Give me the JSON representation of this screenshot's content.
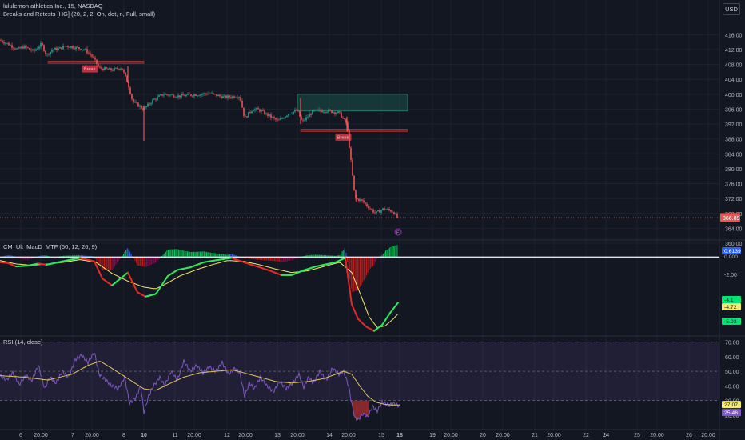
{
  "header": {
    "symbol_title": "lululemon athletica Inc., 15, NASDAQ",
    "indicator_title": "Breaks and Retests [HG] (20, 2, 2, On, dot, n, Full, small)",
    "currency_button": "USD"
  },
  "colors": {
    "background": "#131722",
    "up": "#26a69a",
    "down": "#ef5350",
    "grid": "#1e222d",
    "axis_text": "#b2b5be",
    "rsi_line": "#7e57c2",
    "rsi_ma": "#e3c45b",
    "macd_fast": "#e62828",
    "macd_fast_up": "#2ee85b",
    "macd_signal": "#f4ea6a",
    "retest_zone": "#1b5e55",
    "break_zone": "#8b2e38"
  },
  "chart_data": [
    {
      "type": "candlestick",
      "title": "lululemon athletica Inc., 15, NASDAQ",
      "ylim": [
        360,
        418
      ],
      "y_ticks": [
        "416.00",
        "412.00",
        "408.00",
        "404.00",
        "400.00",
        "396.00",
        "392.00",
        "388.00",
        "384.00",
        "380.00",
        "376.00",
        "372.00",
        "368.00",
        "364.00",
        "360.00"
      ],
      "last_price_label": "366.89",
      "anchors": [
        [
          0,
          414.5
        ],
        [
          10,
          413.5
        ],
        [
          22,
          412
        ],
        [
          30,
          412.8
        ],
        [
          42,
          411.5
        ],
        [
          52,
          413.5
        ],
        [
          58,
          410.5
        ],
        [
          66,
          412
        ],
        [
          74,
          412.2
        ],
        [
          82,
          413
        ],
        [
          95,
          412.5
        ],
        [
          106,
          412
        ],
        [
          116,
          410
        ],
        [
          124,
          407
        ],
        [
          140,
          406.5
        ],
        [
          152,
          407.2
        ],
        [
          160,
          403
        ],
        [
          166,
          398
        ],
        [
          180,
          396
        ],
        [
          192,
          398.5
        ],
        [
          204,
          400
        ],
        [
          224,
          399.5
        ],
        [
          238,
          399.8
        ],
        [
          262,
          400.2
        ],
        [
          280,
          399.2
        ],
        [
          300,
          399.5
        ],
        [
          306,
          393.5
        ],
        [
          316,
          396
        ],
        [
          324,
          395.8
        ],
        [
          334,
          394.5
        ],
        [
          348,
          392.8
        ],
        [
          362,
          395
        ],
        [
          372,
          395.6
        ],
        [
          378,
          392.5
        ],
        [
          392,
          395.5
        ],
        [
          408,
          395.6
        ],
        [
          424,
          395
        ],
        [
          434,
          392
        ],
        [
          438,
          384
        ],
        [
          444,
          372
        ],
        [
          452,
          371.5
        ],
        [
          462,
          369.5
        ],
        [
          470,
          368
        ],
        [
          480,
          369.3
        ],
        [
          492,
          368.5
        ],
        [
          498,
          366.5
        ]
      ],
      "spikes": [
        [
          160,
          407.5,
          403
        ],
        [
          180,
          397,
          387.5
        ],
        [
          376,
          399,
          392
        ],
        [
          434,
          394,
          390
        ],
        [
          446,
          373,
          371
        ]
      ],
      "breaks": [
        {
          "label": "Break",
          "x0": 60,
          "x1": 180,
          "y": 408.6,
          "label_x": 103,
          "label_y": 406.9
        },
        {
          "label": "Break",
          "x0": 376,
          "x1": 510,
          "y": 390.3,
          "label_x": 420,
          "label_y": 388.6
        }
      ],
      "retest_zone": {
        "x0": 372,
        "x1": 510,
        "y_top": 400,
        "y_bottom": 395.5
      }
    },
    {
      "type": "bar",
      "title": "CM_Ult_MacD_MTF (60, 12, 26, 9)",
      "ylim": [
        -9,
        1.8
      ],
      "y_ticks": [
        "-2.00"
      ],
      "labels": [
        "0.6139",
        "0.000",
        "-4.1",
        "-4.72",
        "-5.03"
      ],
      "macd_anchors": [
        [
          0,
          -0.6
        ],
        [
          10,
          -0.7
        ],
        [
          20,
          -1.1
        ],
        [
          35,
          -1.0
        ],
        [
          48,
          -0.75
        ],
        [
          58,
          -0.9
        ],
        [
          78,
          -0.5
        ],
        [
          100,
          -0.1
        ],
        [
          118,
          -0.5
        ],
        [
          128,
          -2.5
        ],
        [
          140,
          -3.3
        ],
        [
          160,
          -1.8
        ],
        [
          172,
          -4.1
        ],
        [
          182,
          -4.6
        ],
        [
          195,
          -4.3
        ],
        [
          210,
          -2.2
        ],
        [
          222,
          -1.5
        ],
        [
          238,
          -1.2
        ],
        [
          255,
          -0.6
        ],
        [
          275,
          -0.3
        ],
        [
          290,
          -0.1
        ],
        [
          308,
          -0.7
        ],
        [
          325,
          -1.2
        ],
        [
          338,
          -1.6
        ],
        [
          352,
          -2.1
        ],
        [
          365,
          -2.1
        ],
        [
          378,
          -1.6
        ],
        [
          395,
          -1.1
        ],
        [
          420,
          -0.6
        ],
        [
          432,
          -0.1
        ],
        [
          440,
          -5.5
        ],
        [
          448,
          -7.2
        ],
        [
          458,
          -8.1
        ],
        [
          468,
          -8.6
        ],
        [
          478,
          -7.9
        ],
        [
          488,
          -6.5
        ],
        [
          498,
          -5.3
        ]
      ],
      "signal_anchors": [
        [
          0,
          -0.4
        ],
        [
          20,
          -0.8
        ],
        [
          40,
          -0.95
        ],
        [
          60,
          -0.8
        ],
        [
          80,
          -0.6
        ],
        [
          100,
          -0.3
        ],
        [
          120,
          -0.6
        ],
        [
          140,
          -1.9
        ],
        [
          160,
          -2.8
        ],
        [
          180,
          -3.5
        ],
        [
          195,
          -3.7
        ],
        [
          210,
          -3.0
        ],
        [
          225,
          -2.2
        ],
        [
          245,
          -1.5
        ],
        [
          265,
          -0.9
        ],
        [
          285,
          -0.4
        ],
        [
          305,
          -0.5
        ],
        [
          325,
          -0.9
        ],
        [
          345,
          -1.4
        ],
        [
          365,
          -1.8
        ],
        [
          385,
          -1.6
        ],
        [
          405,
          -1.1
        ],
        [
          425,
          -0.6
        ],
        [
          440,
          -1.8
        ],
        [
          452,
          -4.6
        ],
        [
          462,
          -7.0
        ],
        [
          472,
          -8.2
        ],
        [
          482,
          -8.0
        ],
        [
          492,
          -7.2
        ],
        [
          498,
          -6.6
        ]
      ]
    },
    {
      "type": "line",
      "title": "RSI (14, close)",
      "ylim": [
        14,
        73
      ],
      "y_ticks": [
        "70.00",
        "60.00",
        "50.00",
        "40.00",
        "30.00",
        "20.00"
      ],
      "labels": [
        "27.07",
        "25.46"
      ],
      "rsi_anchors": [
        [
          0,
          47
        ],
        [
          8,
          44
        ],
        [
          16,
          49
        ],
        [
          24,
          41
        ],
        [
          32,
          47
        ],
        [
          40,
          44
        ],
        [
          48,
          54
        ],
        [
          56,
          38
        ],
        [
          62,
          46
        ],
        [
          70,
          42
        ],
        [
          78,
          50
        ],
        [
          86,
          46
        ],
        [
          94,
          58
        ],
        [
          102,
          61
        ],
        [
          110,
          56
        ],
        [
          118,
          63
        ],
        [
          124,
          48
        ],
        [
          130,
          45
        ],
        [
          140,
          40
        ],
        [
          148,
          38
        ],
        [
          156,
          46
        ],
        [
          162,
          28
        ],
        [
          170,
          32
        ],
        [
          176,
          40
        ],
        [
          180,
          22
        ],
        [
          186,
          33
        ],
        [
          192,
          40
        ],
        [
          200,
          46
        ],
        [
          206,
          40
        ],
        [
          214,
          50
        ],
        [
          222,
          44
        ],
        [
          230,
          57
        ],
        [
          238,
          50
        ],
        [
          246,
          54
        ],
        [
          254,
          49
        ],
        [
          262,
          53
        ],
        [
          270,
          50
        ],
        [
          278,
          56
        ],
        [
          286,
          48
        ],
        [
          294,
          52
        ],
        [
          300,
          49
        ],
        [
          306,
          33
        ],
        [
          312,
          42
        ],
        [
          318,
          38
        ],
        [
          326,
          46
        ],
        [
          334,
          40
        ],
        [
          342,
          36
        ],
        [
          350,
          43
        ],
        [
          358,
          38
        ],
        [
          366,
          42
        ],
        [
          374,
          48
        ],
        [
          380,
          39
        ],
        [
          386,
          46
        ],
        [
          392,
          42
        ],
        [
          400,
          50
        ],
        [
          408,
          44
        ],
        [
          416,
          52
        ],
        [
          424,
          48
        ],
        [
          430,
          50
        ],
        [
          436,
          40
        ],
        [
          440,
          28
        ],
        [
          444,
          18
        ],
        [
          448,
          17
        ],
        [
          454,
          21
        ],
        [
          460,
          19
        ],
        [
          466,
          26
        ],
        [
          472,
          23
        ],
        [
          478,
          29
        ],
        [
          486,
          27
        ],
        [
          494,
          28
        ],
        [
          500,
          26
        ]
      ],
      "ma_anchors": [
        [
          0,
          47
        ],
        [
          30,
          46
        ],
        [
          60,
          44
        ],
        [
          90,
          48
        ],
        [
          110,
          54
        ],
        [
          125,
          57
        ],
        [
          140,
          52
        ],
        [
          160,
          45
        ],
        [
          180,
          38
        ],
        [
          195,
          37
        ],
        [
          210,
          41
        ],
        [
          230,
          46
        ],
        [
          250,
          49
        ],
        [
          270,
          50
        ],
        [
          290,
          51
        ],
        [
          305,
          49
        ],
        [
          325,
          46
        ],
        [
          345,
          43
        ],
        [
          365,
          42
        ],
        [
          385,
          43
        ],
        [
          405,
          45
        ],
        [
          420,
          48
        ],
        [
          430,
          50
        ],
        [
          440,
          48
        ],
        [
          450,
          40
        ],
        [
          460,
          33
        ],
        [
          470,
          29
        ],
        [
          480,
          27.5
        ],
        [
          490,
          27
        ],
        [
          500,
          27
        ]
      ]
    }
  ],
  "time_axis": {
    "labels": [
      {
        "t": "6",
        "x": 26
      },
      {
        "t": "20:00",
        "x": 51
      },
      {
        "t": "7",
        "x": 91
      },
      {
        "t": "20:00",
        "x": 115
      },
      {
        "t": "8",
        "x": 155
      },
      {
        "t": "10",
        "x": 180
      },
      {
        "t": "11",
        "x": 219
      },
      {
        "t": "20:00",
        "x": 243
      },
      {
        "t": "12",
        "x": 284
      },
      {
        "t": "20:00",
        "x": 307
      },
      {
        "t": "13",
        "x": 347
      },
      {
        "t": "20:00",
        "x": 372
      },
      {
        "t": "14",
        "x": 412
      },
      {
        "t": "20:00",
        "x": 436
      },
      {
        "t": "15",
        "x": 477
      },
      {
        "t": "18",
        "x": 500
      },
      {
        "t": "19",
        "x": 541
      },
      {
        "t": "20:00",
        "x": 564
      },
      {
        "t": "20",
        "x": 604
      },
      {
        "t": "20:00",
        "x": 629
      },
      {
        "t": "21",
        "x": 669
      },
      {
        "t": "20:00",
        "x": 693
      },
      {
        "t": "22",
        "x": 733
      },
      {
        "t": "24",
        "x": 758
      },
      {
        "t": "25",
        "x": 797
      },
      {
        "t": "20:00",
        "x": 822
      },
      {
        "t": "26",
        "x": 862
      },
      {
        "t": "20:00",
        "x": 886
      }
    ],
    "bold_labels": [
      "10",
      "18",
      "24"
    ]
  }
}
